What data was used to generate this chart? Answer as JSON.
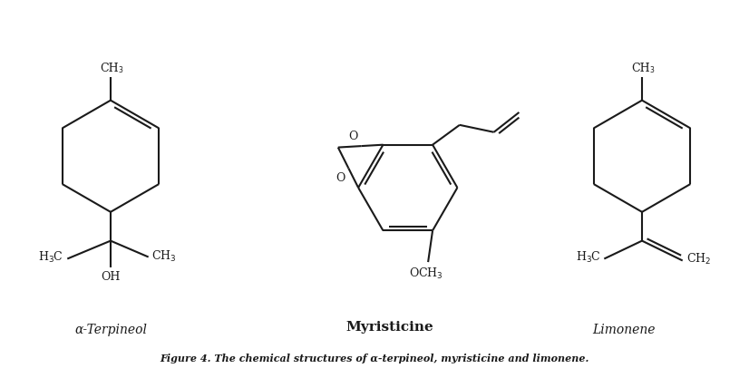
{
  "bg_color": "#ffffff",
  "line_color": "#1a1a1a",
  "line_width": 1.5,
  "fig_caption": "Figure 4. The chemical structures of α-terpineol, myristicine and limonene.",
  "label_alpha_terpineol": "α-Terpineol",
  "label_myristicine": "Myristicine",
  "label_limonene": "Limonene",
  "font_size_label": 10,
  "font_size_chem": 9,
  "font_size_sub": 7,
  "font_size_caption": 8
}
